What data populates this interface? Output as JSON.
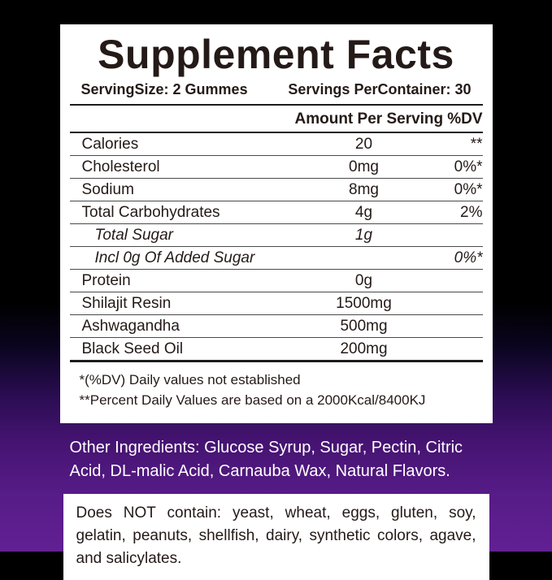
{
  "panel": {
    "title": "Supplement Facts",
    "serving_size": "ServingSize: 2 Gummes",
    "servings_per_container": "Servings PerContainer: 30",
    "columns": {
      "amount": "Amount Per Serving",
      "dv": "%DV"
    },
    "rows": [
      {
        "label": "Calories",
        "amount": "20",
        "dv": "**"
      },
      {
        "label": "Cholesterol",
        "amount": "0mg",
        "dv": "0%*"
      },
      {
        "label": "Sodium",
        "amount": "8mg",
        "dv": "0%*"
      },
      {
        "label": "Total Carbohydrates",
        "amount": "4g",
        "dv": "2%"
      },
      {
        "label": "Total Sugar",
        "amount": "1g",
        "dv": ""
      },
      {
        "label": "Incl 0g Of Added Sugar",
        "amount": "",
        "dv": "0%*"
      },
      {
        "label": "Protein",
        "amount": "0g",
        "dv": ""
      },
      {
        "label": "Shilajit Resin",
        "amount": "1500mg",
        "dv": ""
      },
      {
        "label": "Ashwagandha",
        "amount": "500mg",
        "dv": ""
      },
      {
        "label": "Black Seed Oil",
        "amount": "200mg",
        "dv": ""
      }
    ],
    "footnotes": [
      "*(%DV) Daily values not established",
      "**Percent Daily Values are based on a 2000Kcal/8400KJ"
    ]
  },
  "other_ingredients": "Other Ingredients: Glucose Syrup, Sugar, Pectin, Citric Acid, DL-malic Acid, Carnauba Wax, Natural Flavors.",
  "allergen_notice": "Does NOT contain: yeast, wheat, eggs, gluten, soy, gelatin, peanuts, shellfish, dairy, synthetic colors, agave, and salicylates.",
  "colors": {
    "background_top": "#000000",
    "background_bottom": "#622093",
    "panel_background": "#ffffff",
    "panel_text": "#241a17",
    "ingredients_text": "#ffffff"
  }
}
